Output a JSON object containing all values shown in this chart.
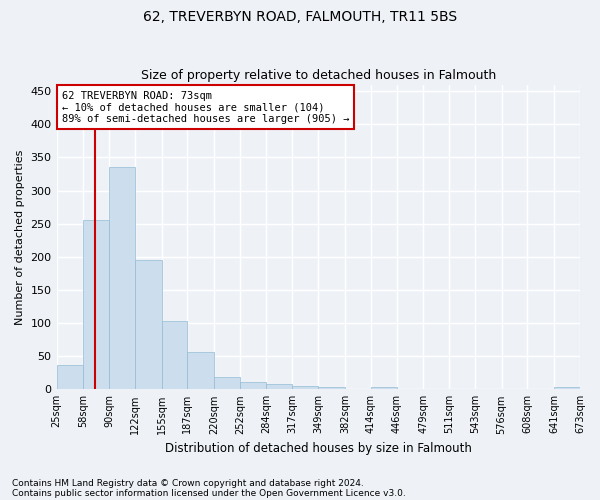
{
  "title": "62, TREVERBYN ROAD, FALMOUTH, TR11 5BS",
  "subtitle": "Size of property relative to detached houses in Falmouth",
  "xlabel": "Distribution of detached houses by size in Falmouth",
  "ylabel": "Number of detached properties",
  "footnote1": "Contains HM Land Registry data © Crown copyright and database right 2024.",
  "footnote2": "Contains public sector information licensed under the Open Government Licence v3.0.",
  "bar_color": "#ccdded",
  "bar_edge_color": "#93bcd4",
  "vline_color": "#cc0000",
  "vline_x": 73,
  "annotation_line1": "62 TREVERBYN ROAD: 73sqm",
  "annotation_line2": "← 10% of detached houses are smaller (104)",
  "annotation_line3": "89% of semi-detached houses are larger (905) →",
  "annotation_box_color": "#ffffff",
  "annotation_box_edge": "#cc0000",
  "bins": [
    25,
    58,
    90,
    122,
    155,
    187,
    220,
    252,
    284,
    317,
    349,
    382,
    414,
    446,
    479,
    511,
    543,
    576,
    608,
    641,
    673
  ],
  "bar_heights": [
    36,
    256,
    335,
    195,
    103,
    57,
    18,
    11,
    8,
    5,
    3,
    0,
    3,
    0,
    0,
    0,
    0,
    0,
    0,
    3
  ],
  "ylim": [
    0,
    460
  ],
  "yticks": [
    0,
    50,
    100,
    150,
    200,
    250,
    300,
    350,
    400,
    450
  ],
  "background_color": "#eef2f7",
  "plot_background": "#eef2f7",
  "grid_color": "#ffffff",
  "title_fontsize": 10,
  "subtitle_fontsize": 9,
  "footnote_fontsize": 6.5,
  "ylabel_fontsize": 8,
  "xlabel_fontsize": 8.5
}
